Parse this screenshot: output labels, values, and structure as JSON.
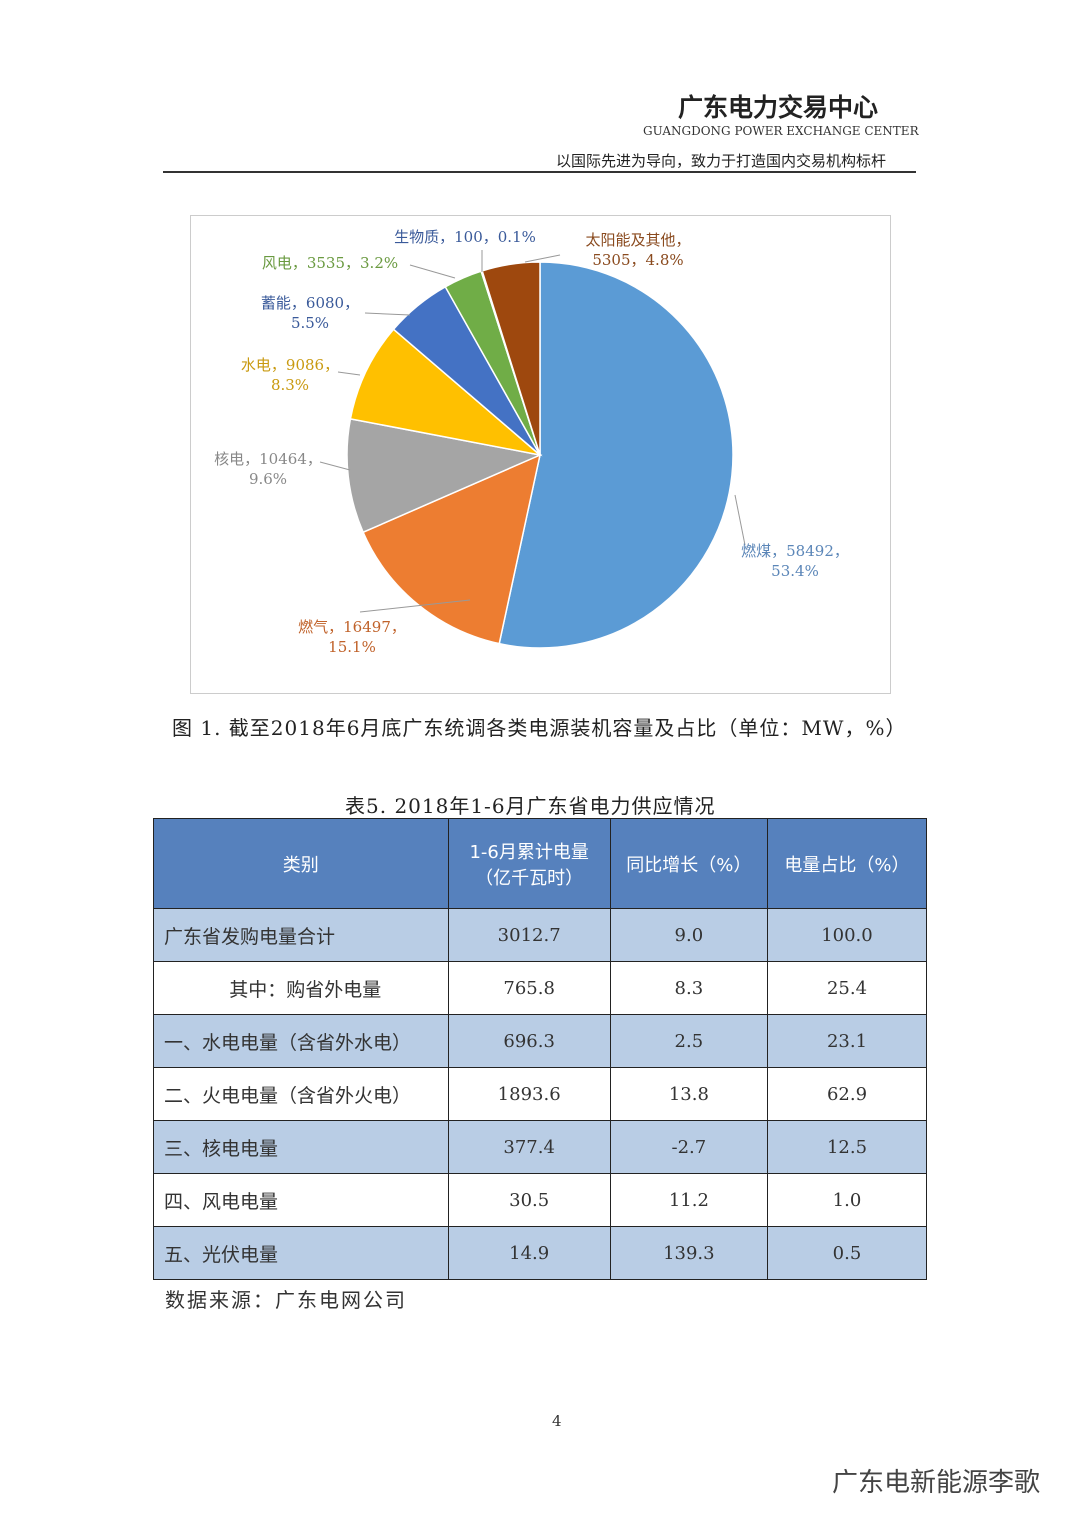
{
  "header": {
    "title": "广东电力交易中心",
    "subtitle": "GUANGDONG POWER EXCHANGE CENTER",
    "slogan": "以国际先进为导向，致力于打造国内交易机构标杆"
  },
  "chart_data": {
    "type": "pie",
    "values": [
      58492,
      16497,
      10464,
      9086,
      6080,
      3535,
      100,
      5305
    ],
    "labels": [
      [
        "燃煤，58492，",
        "53.4%"
      ],
      [
        "燃气，16497，",
        "15.1%"
      ],
      [
        "核电，10464，",
        "9.6%"
      ],
      [
        "水电，9086，",
        "8.3%"
      ],
      [
        "蓄能，6080，",
        "5.5%"
      ],
      [
        "风电，3535，3.2%"
      ],
      [
        "生物质，100，0.1%"
      ],
      [
        "太阳能及其他，",
        "5305，4.8%"
      ]
    ],
    "colors": [
      "#5b9bd5",
      "#ed7d31",
      "#a5a5a5",
      "#ffc000",
      "#4472c4",
      "#70ad47",
      "#4472c4",
      "#9e480e"
    ]
  },
  "caption": "图 1. 截至2018年6月底广东统调各类电源装机容量及占比（单位：MW，%）",
  "table": {
    "title": "表5. 2018年1-6月广东省电力供应情况",
    "header": [
      [
        "类别"
      ],
      [
        "1-6月累计电量",
        "（亿千瓦时）"
      ],
      [
        "同比增长（%）"
      ],
      [
        "电量占比（%）"
      ]
    ],
    "rows": [
      [
        "广东省发购电量合计",
        "3012.7",
        "9.0",
        "100.0"
      ],
      [
        "其中：购省外电量",
        "765.8",
        "8.3",
        "25.4"
      ],
      [
        "一、水电电量（含省外水电）",
        "696.3",
        "2.5",
        "23.1"
      ],
      [
        "二、火电电量（含省外火电）",
        "1893.6",
        "13.8",
        "62.9"
      ],
      [
        "三、核电电量",
        "377.4",
        "-2.7",
        "12.5"
      ],
      [
        "四、风电电量",
        "30.5",
        "11.2",
        "1.0"
      ],
      [
        "五、光伏电量",
        "14.9",
        "139.3",
        "0.5"
      ]
    ]
  },
  "source": "数据来源：广东电网公司",
  "page_number": "4",
  "watermark": "广东电新能源李歌"
}
